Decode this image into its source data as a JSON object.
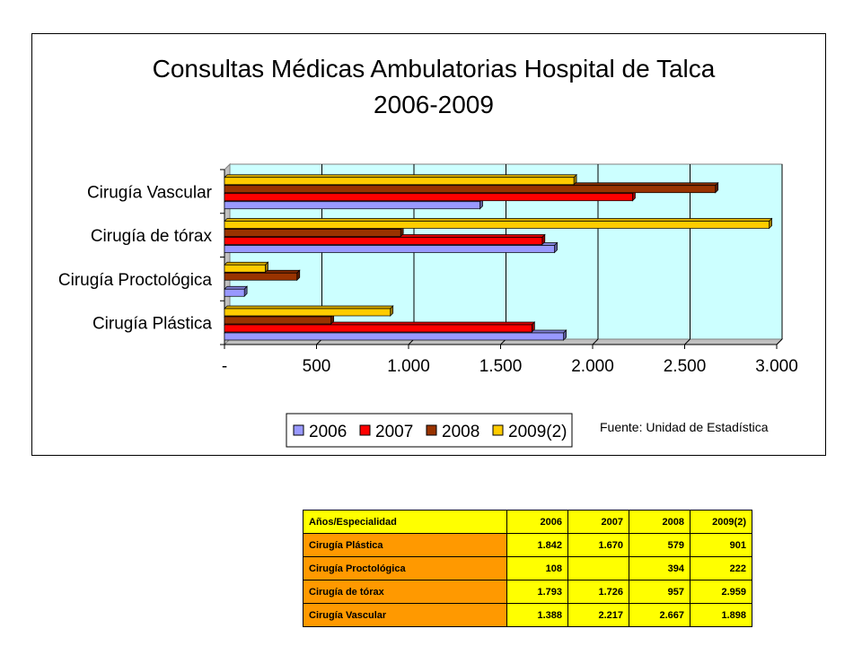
{
  "chart_data": {
    "type": "bar",
    "orientation": "horizontal",
    "title": "Consultas Médicas Ambulatorias Hospital de Talca",
    "subtitle": "2006-2009",
    "categories": [
      "Cirugía Plástica",
      "Cirugía Proctológica",
      "Cirugía de tórax",
      "Cirugía Vascular"
    ],
    "series": [
      {
        "name": "2006",
        "values": [
          1842,
          108,
          1793,
          1388
        ],
        "color": "#9999ff"
      },
      {
        "name": "2007",
        "values": [
          1670,
          null,
          1726,
          2217
        ],
        "color": "#ff0000"
      },
      {
        "name": "2008",
        "values": [
          579,
          394,
          957,
          2667
        ],
        "color": "#993300"
      },
      {
        "name": "2009(2)",
        "values": [
          901,
          222,
          2959,
          1898
        ],
        "color": "#ffcc00"
      }
    ],
    "xlim": [
      0,
      3000
    ],
    "tick_labels": [
      "-",
      "500",
      "1.000",
      "1.500",
      "2.000",
      "2.500",
      "3.000"
    ],
    "grid": true,
    "plot_background": "#ccffff",
    "legend_position": "bottom",
    "source_note": "Fuente: Unidad de Estadística"
  },
  "table": {
    "headers": [
      "Años/Especialidad",
      "2006",
      "2007",
      "2008",
      "2009(2)"
    ],
    "rows": [
      [
        "Cirugía Plástica",
        "1.842",
        "1.670",
        "579",
        "901"
      ],
      [
        "Cirugía Proctológica",
        "108",
        "",
        "394",
        "222"
      ],
      [
        "Cirugía de tórax",
        "1.793",
        "1.726",
        "957",
        "2.959"
      ],
      [
        "Cirugía Vascular",
        "1.388",
        "2.217",
        "2.667",
        "1.898"
      ]
    ]
  }
}
